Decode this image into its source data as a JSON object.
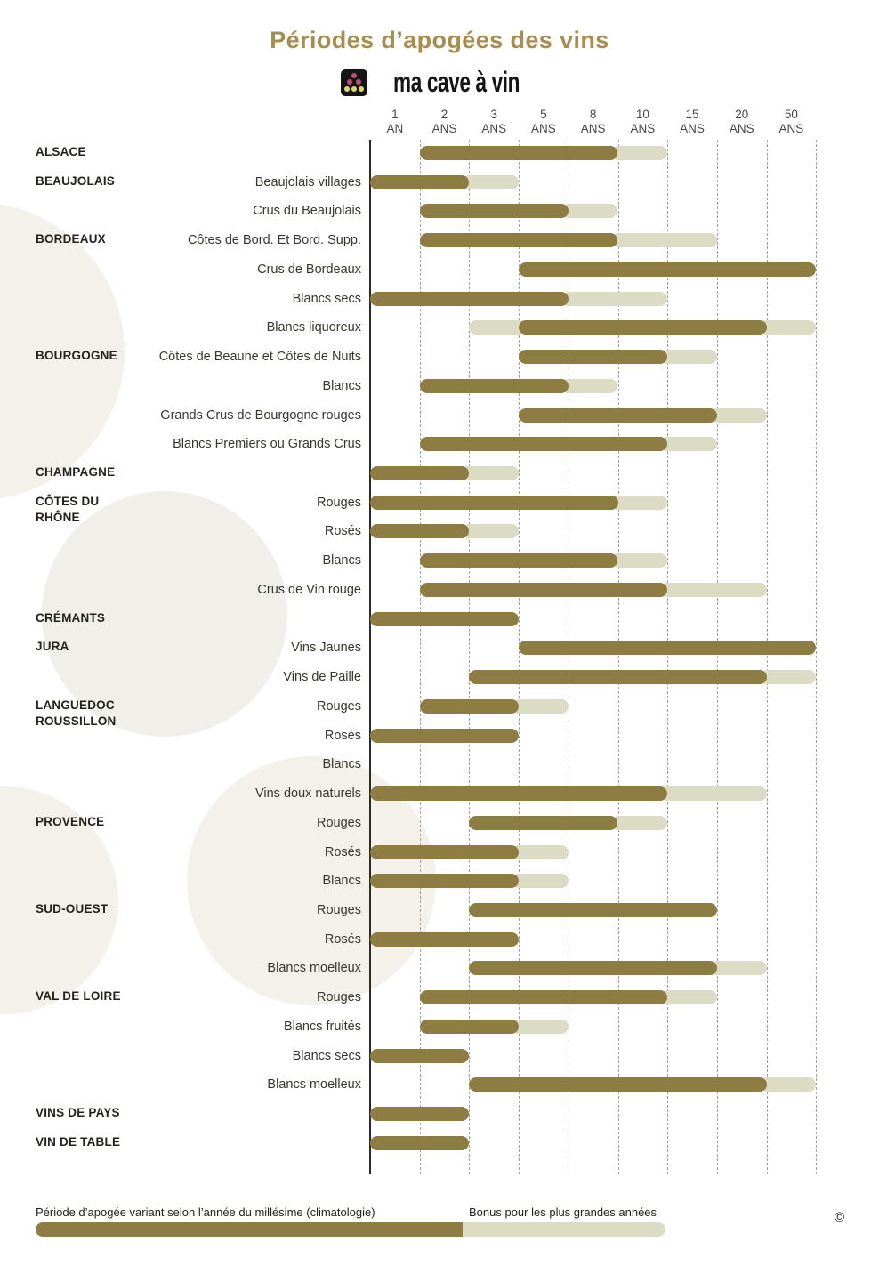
{
  "header": {
    "title": "Périodes d’apogées des vins",
    "logo_text": "ma cave à vin"
  },
  "colors": {
    "bar_dark": "#8d7d43",
    "bar_light": "#dcdbc4",
    "title_gold": "#a68e50",
    "axis_line": "#2c2a25",
    "gridline": "#a3a19c",
    "background_circle": "#f3f1ea",
    "logo_black": "#151515",
    "grape_pink": "#bf4d78",
    "grape_yellow": "#ded76a"
  },
  "footer": {
    "legend_dark": "Période d’apogée variant selon l’année du millésime (climatologie)",
    "legend_light": "Bonus pour les plus grandes années",
    "copyright": "©"
  },
  "chart_data": {
    "type": "bar",
    "orientation": "horizontal",
    "title": "Périodes d’apogées des vins",
    "tick_labels": [
      "1 AN",
      "2 ANS",
      "3 ANS",
      "5 ANS",
      "8 ANS",
      "10 ANS",
      "15 ANS",
      "20 ANS",
      "50 ANS"
    ],
    "tick_years": [
      1,
      2,
      3,
      5,
      8,
      10,
      15,
      20,
      50
    ],
    "units_note": "segment start/end are axis-column units: 0 = axis baseline, boundary k sits between tick k and tick k+1; dark = apogee period, light = bonus for greatest years",
    "grid": "dashed-vertical",
    "legend_position": "bottom",
    "rows": [
      {
        "region": "ALSACE",
        "label": "",
        "segments": [
          {
            "type": "dark",
            "start": 1,
            "end": 5
          },
          {
            "type": "light",
            "start": 5,
            "end": 6
          }
        ]
      },
      {
        "region": "BEAUJOLAIS",
        "label": "Beaujolais villages",
        "segments": [
          {
            "type": "dark",
            "start": 0,
            "end": 2
          },
          {
            "type": "light",
            "start": 2,
            "end": 3
          }
        ]
      },
      {
        "region": "",
        "label": "Crus du Beaujolais",
        "segments": [
          {
            "type": "dark",
            "start": 1,
            "end": 4
          },
          {
            "type": "light",
            "start": 4,
            "end": 5
          }
        ]
      },
      {
        "region": "BORDEAUX",
        "label": "Côtes de Bord. Et Bord. Supp.",
        "segments": [
          {
            "type": "dark",
            "start": 1,
            "end": 5
          },
          {
            "type": "light",
            "start": 5,
            "end": 7
          }
        ]
      },
      {
        "region": "",
        "label": "Crus de Bordeaux",
        "segments": [
          {
            "type": "dark",
            "start": 3,
            "end": 9
          }
        ]
      },
      {
        "region": "",
        "label": "Blancs secs",
        "segments": [
          {
            "type": "dark",
            "start": 0,
            "end": 4
          },
          {
            "type": "light",
            "start": 4,
            "end": 6
          }
        ]
      },
      {
        "region": "",
        "label": "Blancs liquoreux",
        "segments": [
          {
            "type": "light",
            "start": 2,
            "end": 3
          },
          {
            "type": "dark",
            "start": 3,
            "end": 8
          },
          {
            "type": "light",
            "start": 8,
            "end": 9
          }
        ]
      },
      {
        "region": "BOURGOGNE",
        "label": "Côtes de Beaune et Côtes de Nuits",
        "segments": [
          {
            "type": "dark",
            "start": 3,
            "end": 6
          },
          {
            "type": "light",
            "start": 6,
            "end": 7
          }
        ]
      },
      {
        "region": "",
        "label": "Blancs",
        "segments": [
          {
            "type": "dark",
            "start": 1,
            "end": 4
          },
          {
            "type": "light",
            "start": 4,
            "end": 5
          }
        ]
      },
      {
        "region": "",
        "label": "Grands Crus de Bourgogne rouges",
        "segments": [
          {
            "type": "dark",
            "start": 3,
            "end": 7
          },
          {
            "type": "light",
            "start": 7,
            "end": 8
          }
        ]
      },
      {
        "region": "",
        "label": "Blancs Premiers ou Grands Crus",
        "segments": [
          {
            "type": "dark",
            "start": 1,
            "end": 6
          },
          {
            "type": "light",
            "start": 6,
            "end": 7
          }
        ]
      },
      {
        "region": "CHAMPAGNE",
        "label": "",
        "segments": [
          {
            "type": "dark",
            "start": 0,
            "end": 2
          },
          {
            "type": "light",
            "start": 2,
            "end": 3
          }
        ]
      },
      {
        "region": "CÔTES DU\nRHÔNE",
        "label": "Rouges",
        "segments": [
          {
            "type": "dark",
            "start": 0,
            "end": 5
          },
          {
            "type": "light",
            "start": 5,
            "end": 6
          }
        ]
      },
      {
        "region": "",
        "label": "Rosés",
        "segments": [
          {
            "type": "dark",
            "start": 0,
            "end": 2
          },
          {
            "type": "light",
            "start": 2,
            "end": 3
          }
        ]
      },
      {
        "region": "",
        "label": "Blancs",
        "segments": [
          {
            "type": "dark",
            "start": 1,
            "end": 5
          },
          {
            "type": "light",
            "start": 5,
            "end": 6
          }
        ]
      },
      {
        "region": "",
        "label": "Crus de Vin rouge",
        "segments": [
          {
            "type": "dark",
            "start": 1,
            "end": 6
          },
          {
            "type": "light",
            "start": 6,
            "end": 8
          }
        ]
      },
      {
        "region": "CRÉMANTS",
        "label": "",
        "segments": [
          {
            "type": "dark",
            "start": 0,
            "end": 3
          }
        ]
      },
      {
        "region": "JURA",
        "label": "Vins Jaunes",
        "segments": [
          {
            "type": "dark",
            "start": 3,
            "end": 9
          }
        ]
      },
      {
        "region": "",
        "label": "Vins de Paille",
        "segments": [
          {
            "type": "dark",
            "start": 2,
            "end": 8
          },
          {
            "type": "light",
            "start": 8,
            "end": 9
          }
        ]
      },
      {
        "region": "LANGUEDOC\nROUSSILLON",
        "label": "Rouges",
        "segments": [
          {
            "type": "dark",
            "start": 1,
            "end": 3
          },
          {
            "type": "light",
            "start": 3,
            "end": 4
          }
        ]
      },
      {
        "region": "",
        "label": "Rosés",
        "segments": [
          {
            "type": "dark",
            "start": 0,
            "end": 3
          }
        ]
      },
      {
        "region": "",
        "label": "Blancs",
        "segments": []
      },
      {
        "region": "",
        "label": "Vins doux naturels",
        "segments": [
          {
            "type": "dark",
            "start": 0,
            "end": 6
          },
          {
            "type": "light",
            "start": 6,
            "end": 8
          }
        ]
      },
      {
        "region": "PROVENCE",
        "label": "Rouges",
        "segments": [
          {
            "type": "dark",
            "start": 2,
            "end": 5
          },
          {
            "type": "light",
            "start": 5,
            "end": 6
          }
        ]
      },
      {
        "region": "",
        "label": "Rosés",
        "segments": [
          {
            "type": "dark",
            "start": 0,
            "end": 3
          },
          {
            "type": "light",
            "start": 3,
            "end": 4
          }
        ]
      },
      {
        "region": "",
        "label": "Blancs",
        "segments": [
          {
            "type": "dark",
            "start": 0,
            "end": 3
          },
          {
            "type": "light",
            "start": 3,
            "end": 4
          }
        ]
      },
      {
        "region": "SUD-OUEST",
        "label": "Rouges",
        "segments": [
          {
            "type": "dark",
            "start": 2,
            "end": 7
          }
        ]
      },
      {
        "region": "",
        "label": "Rosés",
        "segments": [
          {
            "type": "dark",
            "start": 0,
            "end": 3
          }
        ]
      },
      {
        "region": "",
        "label": "Blancs moelleux",
        "segments": [
          {
            "type": "dark",
            "start": 2,
            "end": 7
          },
          {
            "type": "light",
            "start": 7,
            "end": 8
          }
        ]
      },
      {
        "region": "VAL DE LOIRE",
        "label": "Rouges",
        "segments": [
          {
            "type": "dark",
            "start": 1,
            "end": 6
          },
          {
            "type": "light",
            "start": 6,
            "end": 7
          }
        ]
      },
      {
        "region": "",
        "label": "Blancs fruités",
        "segments": [
          {
            "type": "dark",
            "start": 1,
            "end": 3
          },
          {
            "type": "light",
            "start": 3,
            "end": 4
          }
        ]
      },
      {
        "region": "",
        "label": "Blancs secs",
        "segments": [
          {
            "type": "dark",
            "start": 0,
            "end": 2
          }
        ]
      },
      {
        "region": "",
        "label": "Blancs moelleux",
        "segments": [
          {
            "type": "dark",
            "start": 2,
            "end": 8
          },
          {
            "type": "light",
            "start": 8,
            "end": 9
          }
        ]
      },
      {
        "region": "VINS DE PAYS",
        "label": "",
        "segments": [
          {
            "type": "dark",
            "start": 0,
            "end": 2
          }
        ]
      },
      {
        "region": "VIN DE TABLE",
        "label": "",
        "segments": [
          {
            "type": "dark",
            "start": 0,
            "end": 2
          }
        ]
      }
    ],
    "legend": {
      "dark": "Période d’apogée variant selon l’année du millésime (climatologie)",
      "light": "Bonus pour les plus grandes années"
    }
  }
}
